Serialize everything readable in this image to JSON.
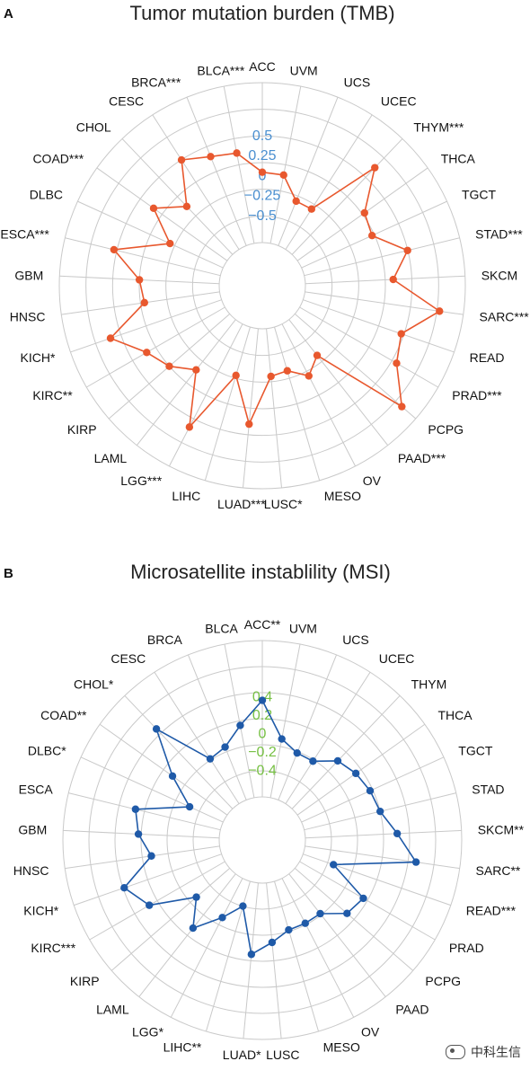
{
  "panels": [
    {
      "letter": "A",
      "title": "Tumor mutation burden (TMB)",
      "color": "#e8582e",
      "tick_color": "#4a8fd0"
    },
    {
      "letter": "B",
      "title": "Microsatellite instablility (MSI)",
      "color": "#1f5aa8",
      "tick_color": "#76c043"
    }
  ],
  "watermark": "中科生信",
  "chart_data": [
    {
      "type": "radar",
      "title": "Tumor mutation burden (TMB)",
      "categories": [
        "ACC",
        "UVM",
        "UCS",
        "UCEC",
        "THYM***",
        "THCA",
        "TGCT",
        "STAD***",
        "SKCM",
        "SARC***",
        "READ",
        "PRAD***",
        "PCPG",
        "PAAD***",
        "OV",
        "MESO",
        "LUSC*",
        "LUAD***",
        "LIHC",
        "LGG***",
        "LAML",
        "KIRP",
        "KIRC**",
        "KICH*",
        "HNSC",
        "GBM",
        "ESCA***",
        "DLBC",
        "COAD***",
        "CHOL",
        "CESC",
        "BRCA***",
        "BLCA***"
      ],
      "values": [
        0.03,
        0.02,
        -0.25,
        -0.25,
        0.65,
        0.18,
        0.12,
        0.48,
        0.25,
        0.85,
        0.45,
        0.55,
        0.92,
        -0.28,
        -0.12,
        -0.28,
        -0.25,
        0.35,
        -0.22,
        0.6,
        -0.05,
        0.15,
        0.28,
        0.62,
        0.1,
        0.15,
        0.52,
        -0.12,
        0.28,
        -0.02,
        0.48,
        0.35,
        0.3
      ],
      "rticks": [
        0.5,
        0.25,
        0,
        -0.25,
        -0.5
      ],
      "rlim": [
        -0.85,
        1.15
      ],
      "grid": true
    },
    {
      "type": "radar",
      "title": "Microsatellite instablility (MSI)",
      "categories": [
        "ACC**",
        "UVM",
        "UCS",
        "UCEC",
        "THYM",
        "THCA",
        "TGCT",
        "STAD",
        "SKCM**",
        "SARC**",
        "READ***",
        "PRAD",
        "PCPG",
        "PAAD",
        "OV",
        "MESO",
        "LUSC",
        "LUAD*",
        "LIHC**",
        "LGG*",
        "LAML",
        "KIRP",
        "KIRC***",
        "KICH*",
        "HNSC",
        "GBM",
        "ESCA",
        "DLBC*",
        "COAD**",
        "CHOL*",
        "CESC",
        "BRCA",
        "BLCA"
      ],
      "values": [
        0.35,
        -0.05,
        -0.15,
        -0.15,
        0.02,
        0.08,
        0.12,
        0.15,
        0.3,
        0.52,
        -0.35,
        0.1,
        0.05,
        -0.15,
        -0.15,
        -0.15,
        -0.05,
        0.08,
        -0.42,
        -0.22,
        0.05,
        -0.22,
        0.25,
        0.42,
        0.05,
        0.18,
        0.25,
        -0.3,
        0.03,
        0.5,
        -0.12,
        -0.08,
        0.1
      ],
      "rticks": [
        0.4,
        0.2,
        0,
        -0.2,
        -0.4
      ],
      "rlim": [
        -0.7,
        1.0
      ],
      "grid": true
    }
  ]
}
